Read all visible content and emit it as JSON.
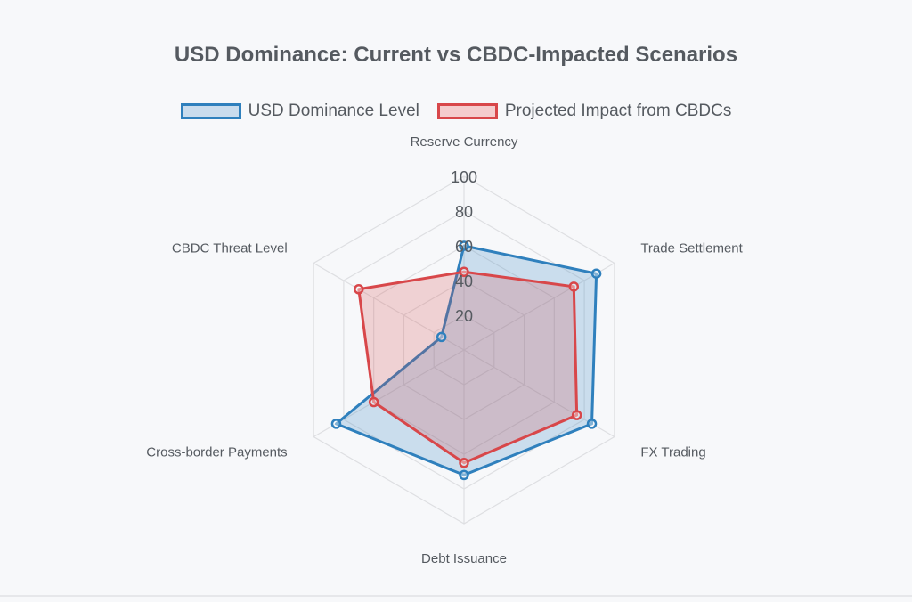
{
  "title": "USD Dominance: Current vs CBDC-Impacted Scenarios",
  "legend": [
    {
      "label": "USD Dominance Level",
      "color": "#2f80bd",
      "fill": "#c9dced"
    },
    {
      "label": "Projected Impact from CBDCs",
      "color": "#d8474a",
      "fill": "#f4cccd"
    }
  ],
  "chart_data": {
    "type": "radar",
    "title": "USD Dominance: Current vs CBDC-Impacted Scenarios",
    "categories": [
      "Reserve Currency",
      "Trade Settlement",
      "FX Trading",
      "Debt Issuance",
      "Cross-border Payments",
      "CBDC Threat Level"
    ],
    "r_range": [
      0,
      100
    ],
    "ticks": [
      20,
      40,
      60,
      80,
      100
    ],
    "grid": true,
    "legend_position": "top",
    "series": [
      {
        "name": "USD Dominance Level",
        "values": [
          60,
          88,
          85,
          72,
          85,
          15
        ],
        "color": "#2f80bd",
        "fill": "rgba(47,128,189,0.22)"
      },
      {
        "name": "Projected Impact from CBDCs",
        "values": [
          45,
          73,
          75,
          65,
          60,
          70
        ],
        "color": "#d8474a",
        "fill": "rgba(216,71,74,0.22)"
      }
    ]
  }
}
